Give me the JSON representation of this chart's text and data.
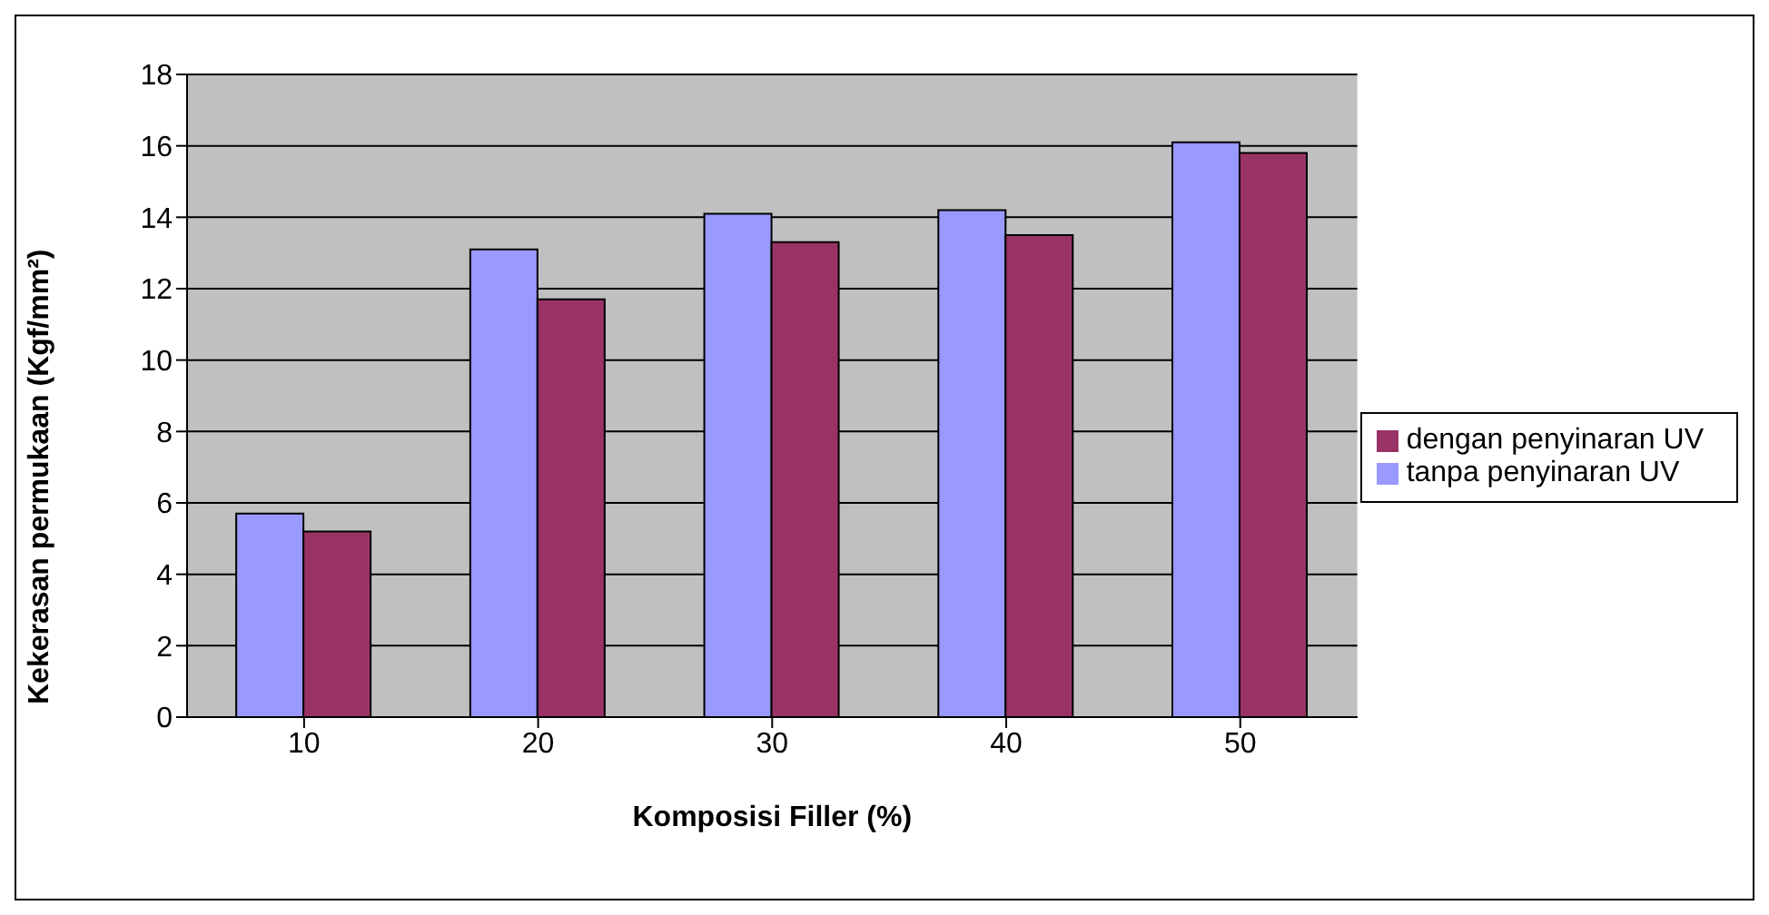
{
  "chart_data": {
    "type": "bar",
    "xlabel": "Komposisi Filler (%)",
    "ylabel": "Kekerasan permukaan (Kgf/mm²)",
    "categories": [
      "10",
      "20",
      "30",
      "40",
      "50"
    ],
    "series": [
      {
        "name": "tanpa penyinaran UV",
        "color": "#9999ff",
        "values": [
          5.7,
          13.1,
          14.1,
          14.2,
          16.1
        ]
      },
      {
        "name": "dengan penyinaran UV",
        "color": "#993366",
        "values": [
          5.2,
          11.7,
          13.3,
          13.5,
          15.8
        ]
      }
    ],
    "ylim": [
      0,
      18
    ],
    "yticks": [
      0,
      2,
      4,
      6,
      8,
      10,
      12,
      14,
      16,
      18
    ],
    "grid": "y",
    "legend": "right"
  }
}
